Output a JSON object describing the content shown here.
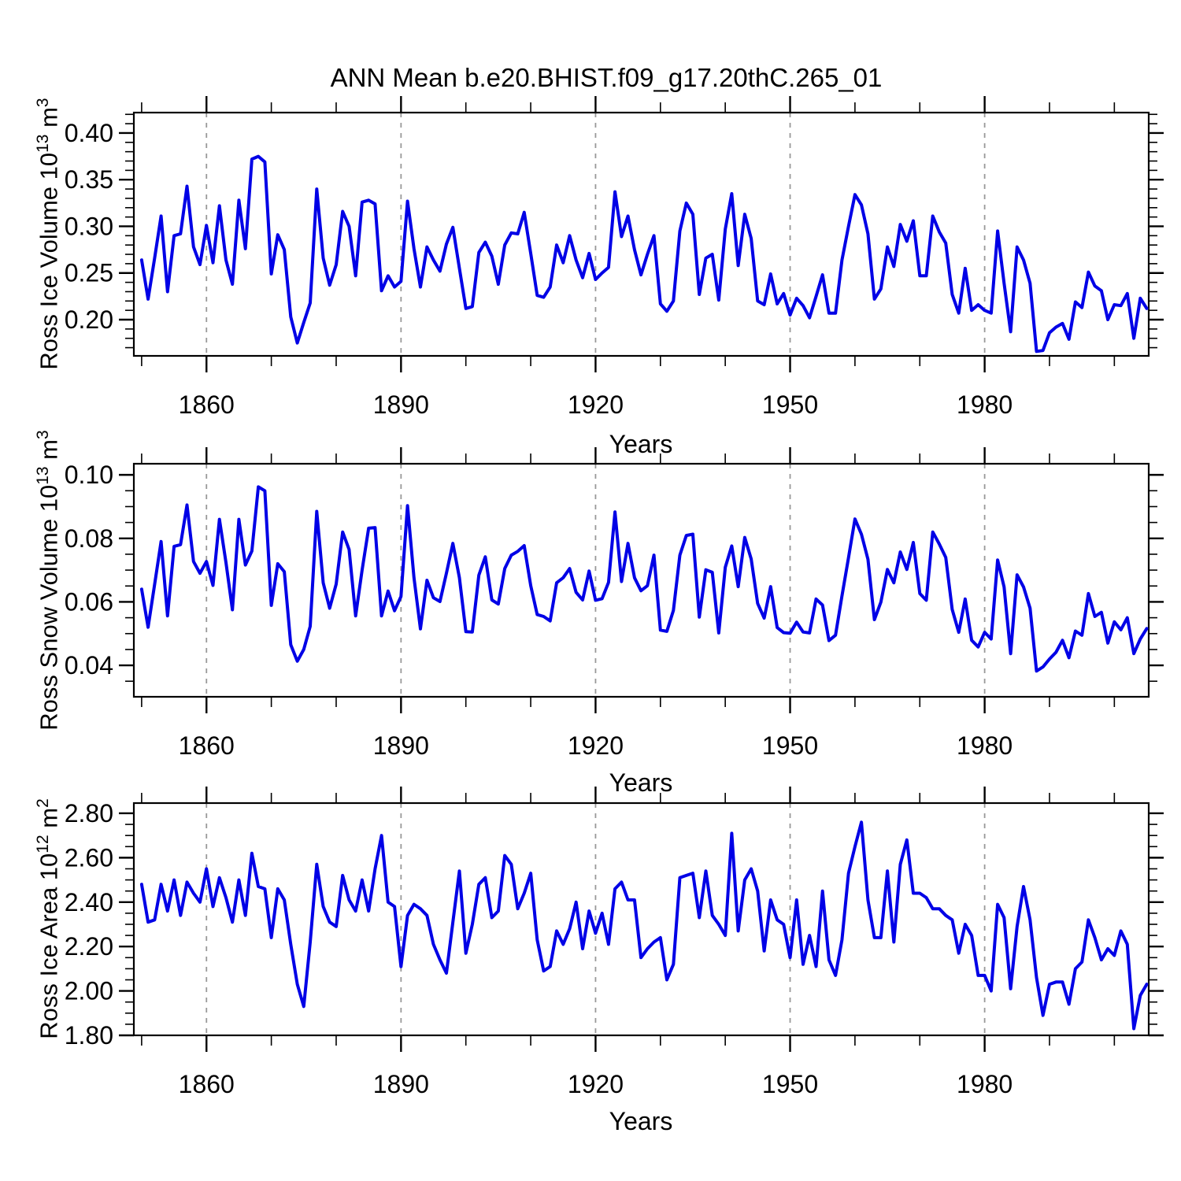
{
  "title": "ANN Mean b.e20.BHIST.f09_g17.20thC.265_01",
  "chart_data": {
    "type": "line",
    "x_label": "Years",
    "x_ticks": [
      1860,
      1890,
      1920,
      1950,
      1980
    ],
    "x_minor_step": 10,
    "x_range": [
      1848.8,
      2005.3
    ],
    "years": {
      "start": 1850,
      "end": 2005,
      "step": 1
    },
    "line_color": "#0000e6",
    "grid_color": "#999999",
    "frame_color": "#000000",
    "grid": "vertical-dashed-at-major-xticks",
    "legend": "none",
    "panels": [
      {
        "name": "ross-ice-volume",
        "y_label": "Ross Ice Volume 10^13 m^3",
        "y_ticks": [
          "0.20",
          "0.25",
          "0.30",
          "0.35",
          "0.40"
        ],
        "y_tick_values": [
          0.2,
          0.25,
          0.3,
          0.35,
          0.4
        ],
        "y_minor_step": 0.01,
        "y_range": [
          0.1612,
          0.4219
        ],
        "values": [
          0.264,
          0.222,
          0.266,
          0.311,
          0.23,
          0.29,
          0.292,
          0.343,
          0.278,
          0.259,
          0.301,
          0.261,
          0.322,
          0.264,
          0.238,
          0.328,
          0.276,
          0.372,
          0.375,
          0.369,
          0.249,
          0.291,
          0.275,
          0.203,
          0.175,
          0.197,
          0.218,
          0.34,
          0.266,
          0.237,
          0.259,
          0.316,
          0.3,
          0.247,
          0.326,
          0.328,
          0.324,
          0.231,
          0.247,
          0.235,
          0.241,
          0.327,
          0.276,
          0.235,
          0.278,
          0.264,
          0.252,
          0.281,
          0.299,
          0.255,
          0.212,
          0.214,
          0.272,
          0.283,
          0.268,
          0.238,
          0.28,
          0.293,
          0.292,
          0.315,
          0.271,
          0.226,
          0.224,
          0.235,
          0.28,
          0.261,
          0.29,
          0.264,
          0.245,
          0.271,
          0.243,
          0.25,
          0.256,
          0.337,
          0.289,
          0.311,
          0.275,
          0.248,
          0.27,
          0.29,
          0.217,
          0.209,
          0.22,
          0.295,
          0.325,
          0.313,
          0.227,
          0.266,
          0.27,
          0.221,
          0.297,
          0.335,
          0.258,
          0.313,
          0.287,
          0.22,
          0.216,
          0.249,
          0.217,
          0.228,
          0.205,
          0.223,
          0.215,
          0.202,
          0.225,
          0.248,
          0.207,
          0.207,
          0.264,
          0.3,
          0.334,
          0.323,
          0.292,
          0.222,
          0.233,
          0.278,
          0.257,
          0.302,
          0.284,
          0.306,
          0.247,
          0.247,
          0.311,
          0.294,
          0.282,
          0.227,
          0.207,
          0.255,
          0.21,
          0.216,
          0.21,
          0.207,
          0.295,
          0.239,
          0.187,
          0.278,
          0.264,
          0.239,
          0.166,
          0.167,
          0.186,
          0.192,
          0.196,
          0.179,
          0.219,
          0.213,
          0.251,
          0.236,
          0.231,
          0.2,
          0.216,
          0.215,
          0.228,
          0.18,
          0.223,
          0.212
        ]
      },
      {
        "name": "ross-snow-volume",
        "y_label": "Ross Snow Volume 10^13 m^3",
        "y_ticks": [
          "0.04",
          "0.06",
          "0.08",
          "0.10"
        ],
        "y_tick_values": [
          0.04,
          0.06,
          0.08,
          0.1
        ],
        "y_minor_step": 0.005,
        "y_range": [
          0.0301,
          0.1035
        ],
        "values": [
          0.064,
          0.052,
          0.0655,
          0.079,
          0.0556,
          0.0775,
          0.078,
          0.0905,
          0.0727,
          0.069,
          0.0727,
          0.0652,
          0.086,
          0.0724,
          0.0575,
          0.086,
          0.0716,
          0.076,
          0.0962,
          0.095,
          0.0589,
          0.072,
          0.0695,
          0.0465,
          0.0413,
          0.045,
          0.0523,
          0.0885,
          0.066,
          0.058,
          0.0656,
          0.082,
          0.0765,
          0.0556,
          0.07,
          0.0832,
          0.0834,
          0.0556,
          0.0634,
          0.0572,
          0.0617,
          0.0903,
          0.0676,
          0.0515,
          0.0668,
          0.0613,
          0.0601,
          0.069,
          0.0784,
          0.0676,
          0.0506,
          0.0505,
          0.0684,
          0.0742,
          0.0606,
          0.0593,
          0.0705,
          0.0747,
          0.0759,
          0.0777,
          0.0651,
          0.056,
          0.0554,
          0.054,
          0.066,
          0.0676,
          0.0705,
          0.063,
          0.0606,
          0.0697,
          0.0605,
          0.061,
          0.0661,
          0.0883,
          0.0664,
          0.0784,
          0.0676,
          0.0635,
          0.0651,
          0.0747,
          0.0511,
          0.0507,
          0.0573,
          0.0747,
          0.0809,
          0.0813,
          0.0552,
          0.0701,
          0.0693,
          0.0502,
          0.0709,
          0.0776,
          0.0648,
          0.0803,
          0.0735,
          0.0595,
          0.0549,
          0.0648,
          0.0519,
          0.0503,
          0.0501,
          0.0536,
          0.0505,
          0.0502,
          0.0609,
          0.059,
          0.0478,
          0.0495,
          0.0619,
          0.0739,
          0.0861,
          0.0813,
          0.0734,
          0.0544,
          0.0599,
          0.0702,
          0.066,
          0.0757,
          0.0702,
          0.0787,
          0.0626,
          0.0605,
          0.082,
          0.0782,
          0.074,
          0.0576,
          0.0504,
          0.0609,
          0.0479,
          0.0458,
          0.0504,
          0.0483,
          0.0732,
          0.0647,
          0.0437,
          0.0685,
          0.0647,
          0.058,
          0.0382,
          0.0395,
          0.042,
          0.0441,
          0.0479,
          0.0424,
          0.0508,
          0.0495,
          0.0626,
          0.0554,
          0.0567,
          0.047,
          0.0537,
          0.0512,
          0.055,
          0.0437,
          0.0483,
          0.0516
        ]
      },
      {
        "name": "ross-ice-area",
        "y_label": "Ross Ice Area 10^12 m^2",
        "y_ticks": [
          "1.80",
          "2.00",
          "2.20",
          "2.40",
          "2.60",
          "2.80"
        ],
        "y_tick_values": [
          1.8,
          2.0,
          2.2,
          2.4,
          2.6,
          2.8
        ],
        "y_minor_step": 0.05,
        "y_range": [
          1.8,
          2.846
        ],
        "values": [
          2.48,
          2.31,
          2.32,
          2.48,
          2.36,
          2.5,
          2.34,
          2.49,
          2.44,
          2.4,
          2.55,
          2.38,
          2.51,
          2.42,
          2.31,
          2.5,
          2.34,
          2.62,
          2.47,
          2.46,
          2.24,
          2.46,
          2.41,
          2.21,
          2.03,
          1.93,
          2.22,
          2.57,
          2.38,
          2.31,
          2.29,
          2.52,
          2.41,
          2.36,
          2.5,
          2.36,
          2.55,
          2.7,
          2.4,
          2.38,
          2.11,
          2.34,
          2.39,
          2.37,
          2.34,
          2.21,
          2.14,
          2.08,
          2.31,
          2.54,
          2.17,
          2.3,
          2.48,
          2.51,
          2.33,
          2.36,
          2.61,
          2.57,
          2.37,
          2.44,
          2.53,
          2.23,
          2.09,
          2.11,
          2.27,
          2.21,
          2.28,
          2.4,
          2.19,
          2.36,
          2.26,
          2.35,
          2.21,
          2.46,
          2.49,
          2.41,
          2.41,
          2.15,
          2.19,
          2.22,
          2.24,
          2.05,
          2.12,
          2.51,
          2.52,
          2.53,
          2.33,
          2.54,
          2.34,
          2.3,
          2.25,
          2.71,
          2.27,
          2.5,
          2.55,
          2.45,
          2.18,
          2.41,
          2.32,
          2.3,
          2.15,
          2.41,
          2.12,
          2.25,
          2.11,
          2.45,
          2.14,
          2.07,
          2.23,
          2.53,
          2.65,
          2.76,
          2.41,
          2.24,
          2.24,
          2.54,
          2.22,
          2.57,
          2.68,
          2.44,
          2.44,
          2.42,
          2.37,
          2.37,
          2.34,
          2.32,
          2.17,
          2.3,
          2.25,
          2.07,
          2.07,
          2.0,
          2.39,
          2.33,
          2.01,
          2.29,
          2.47,
          2.32,
          2.06,
          1.89,
          2.03,
          2.04,
          2.04,
          1.94,
          2.1,
          2.13,
          2.32,
          2.24,
          2.14,
          2.19,
          2.16,
          2.27,
          2.21,
          1.83,
          1.98,
          2.03
        ]
      }
    ]
  }
}
